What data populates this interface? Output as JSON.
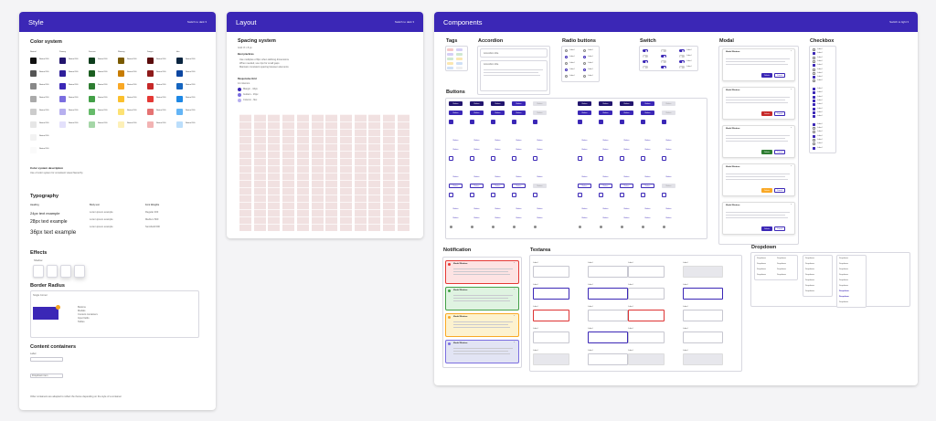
{
  "colors": {
    "header": "#3b27b6",
    "primary": "#3b27b6",
    "primary_dark": "#22156e",
    "danger": "#c62828",
    "success": "#2e7d32",
    "warning": "#f9a825"
  },
  "style": {
    "title": "Style",
    "header_button": "Switch to dark ▾",
    "color_system": {
      "title": "Color system",
      "columns": [
        "Neutral",
        "Primary",
        "Success",
        "Warning",
        "Danger",
        "Info"
      ],
      "swatch_label": "Neutral 100",
      "description_title": "Color system description",
      "description": "Use of color system for consistent visual hierarchy"
    },
    "typography": {
      "title": "Typography",
      "headers": [
        "Heading",
        "Body text",
        "Font Weights"
      ],
      "headings": [
        "24px text example",
        "28px text example",
        "36px text example"
      ],
      "body": [
        "Lorem ipsum example",
        "Lorem ipsum example",
        "Lorem ipsum example"
      ],
      "weights": [
        "Regular 400",
        "Medium 500",
        "Semibold 600"
      ]
    },
    "effects": {
      "title": "Effects",
      "label": "Shadow"
    },
    "border_radius": {
      "title": "Border Radius",
      "label": "Single Corner",
      "bullets": [
        "Buttons",
        "Modals",
        "Content containers",
        "Input fields",
        "Tables"
      ]
    },
    "containers": {
      "title": "Content containers",
      "field_label": "Label",
      "dropdown": "Dropdown item",
      "footer": "Other containers are adapted to reflect the theme depending on the style of a container"
    }
  },
  "layout": {
    "title": "Layout",
    "header_button": "Switch to dark ▾",
    "spacing_title": "Spacing system",
    "spacing_sub": "Grid: 8 × 8 px",
    "best_practices": "Best practices",
    "bullets": [
      "Use multiples of 8px when defining dimensions",
      "When needed, use 4px for small gaps",
      "Maintain consistent spacing between elements"
    ],
    "responsive": "Responsive Grid",
    "columns_label": "12 columns",
    "legend": [
      "Margin - 16px",
      "Gutters - 16px",
      "Column - flex"
    ]
  },
  "components": {
    "title": "Components",
    "header_button": "Switch to light ▾",
    "sections": {
      "tags": "Tags",
      "accordion": "Accordion",
      "radio": "Radio buttons",
      "switch": "Switch",
      "modal": "Modal",
      "checkbox": "Checkbox",
      "buttons": "Buttons",
      "notification": "Notification",
      "textarea": "Textarea",
      "dropdown": "Dropdown"
    },
    "accordion_item": "Accordion title",
    "button_label": "Button",
    "modal_title": "Modal Window",
    "modal_actions": [
      "Delete",
      "Cancel"
    ],
    "notification_title": "Modal Window",
    "option_label": "Label",
    "dropdown_label": "Dropdown",
    "textarea_label": "Label"
  }
}
